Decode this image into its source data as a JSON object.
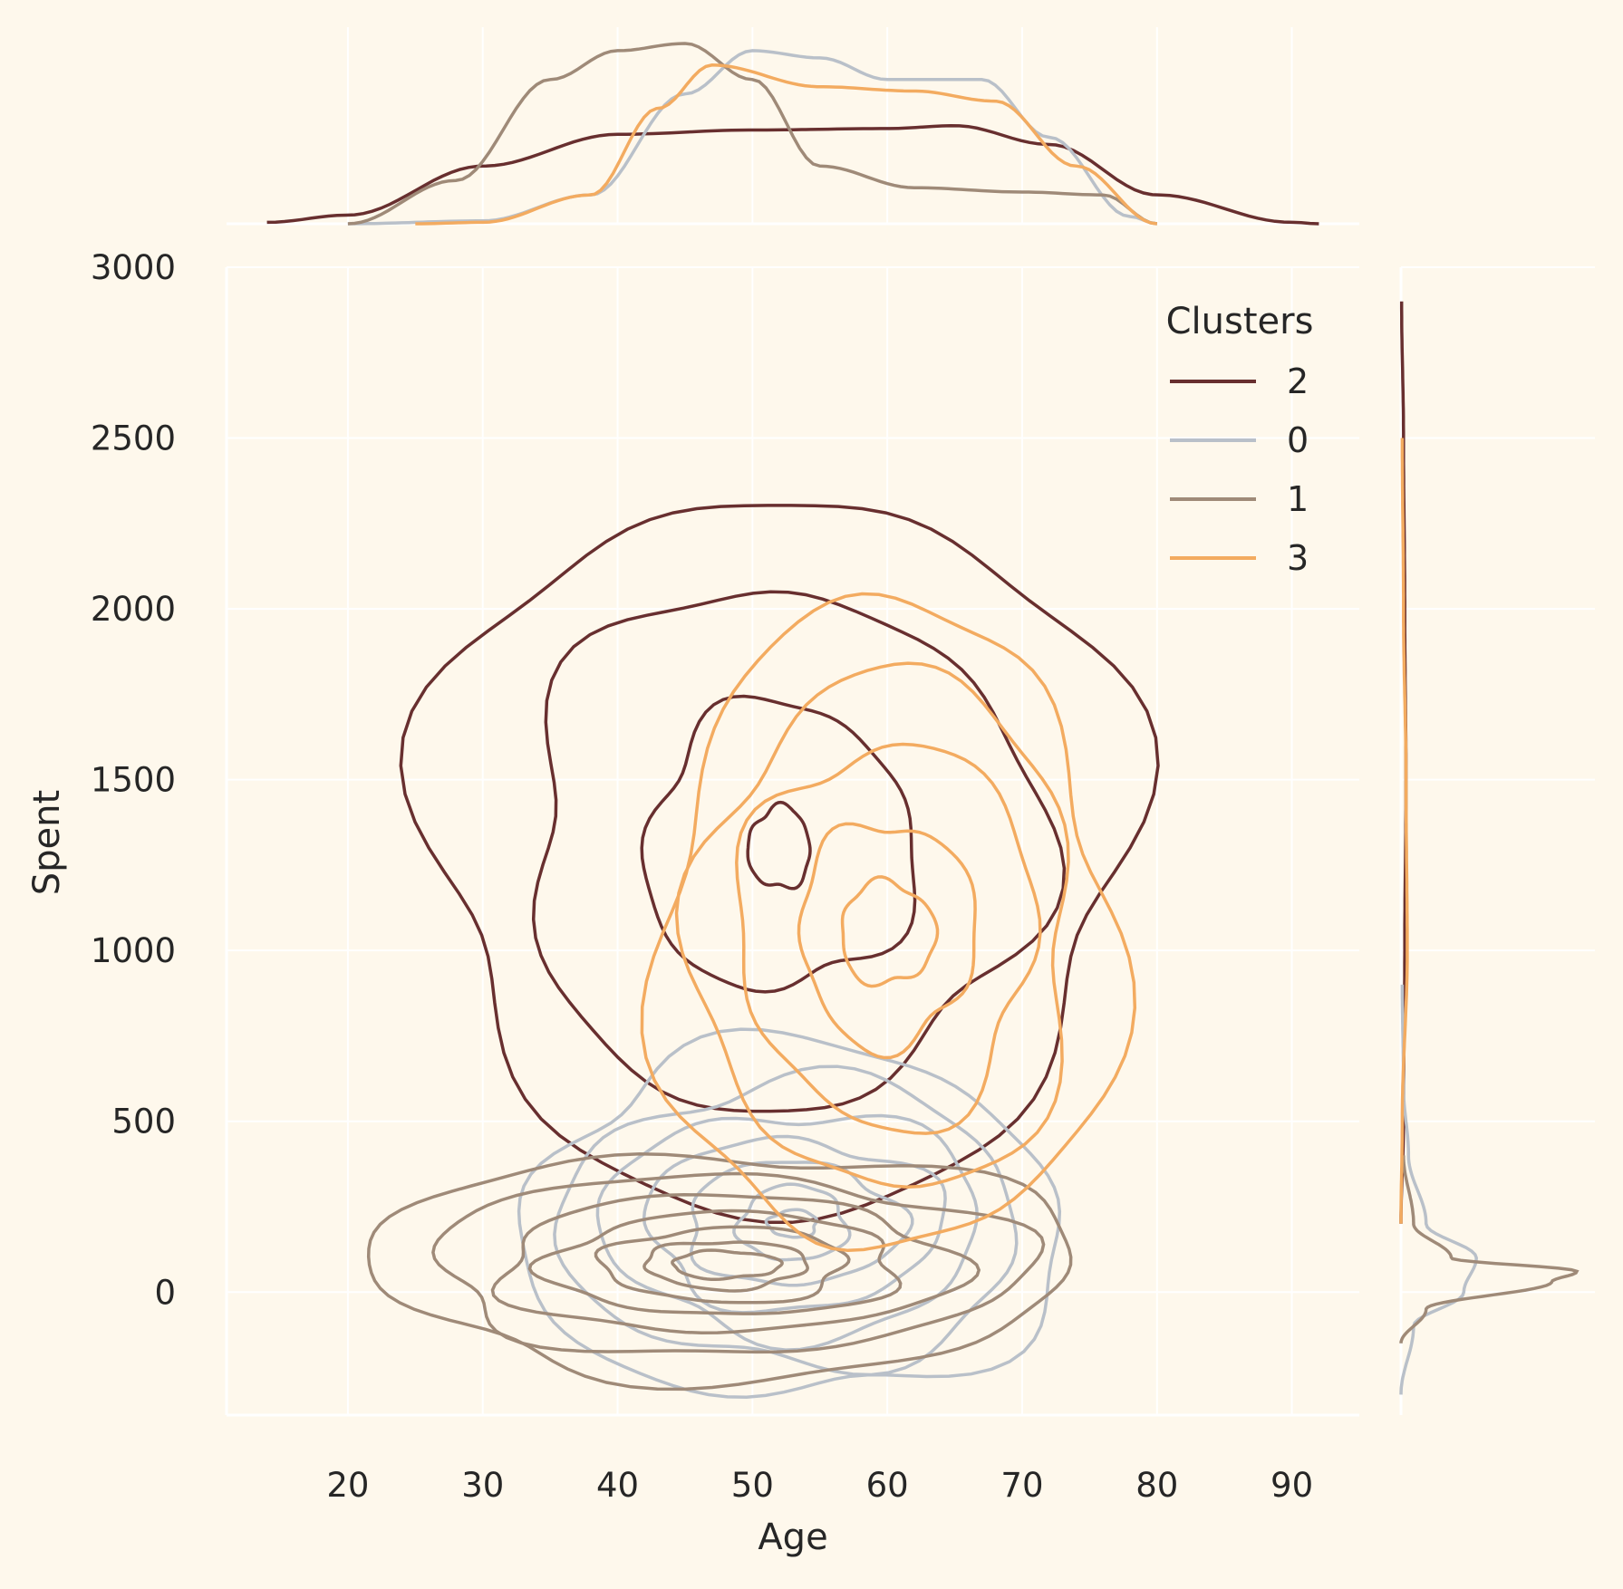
{
  "chart_data": {
    "type": "kde-joint",
    "xlabel": "Age",
    "ylabel": "Spent",
    "xlim": [
      11,
      95
    ],
    "ylim": [
      -360,
      3000
    ],
    "xticks": [
      20,
      30,
      40,
      50,
      60,
      70,
      80,
      90
    ],
    "yticks": [
      0,
      500,
      1000,
      1500,
      2000,
      2500,
      3000
    ],
    "grid": true,
    "legend": {
      "title": "Clusters",
      "placement": "top-right",
      "entries": [
        "2",
        "0",
        "1",
        "3"
      ]
    },
    "colors": {
      "2": "#682F2F",
      "0": "#B9C0C9",
      "1": "#9F8A78",
      "3": "#F3AB60",
      "background": "#FEF8EC",
      "grid": "#FFFFFF"
    },
    "series": [
      {
        "name": "2",
        "cx": 52,
        "cy": 1300,
        "levels": [
          [
            26,
            1050
          ],
          [
            19,
            760
          ],
          [
            10,
            420
          ],
          [
            2.3,
            120
          ]
        ],
        "age_density": [
          [
            14,
            0.001
          ],
          [
            20,
            0.006
          ],
          [
            30,
            0.04
          ],
          [
            40,
            0.062
          ],
          [
            50,
            0.065
          ],
          [
            60,
            0.066
          ],
          [
            65,
            0.068
          ],
          [
            72,
            0.055
          ],
          [
            80,
            0.02
          ],
          [
            90,
            0.001
          ],
          [
            92,
            0
          ]
        ],
        "spent_density": [
          [
            200,
            0
          ],
          [
            500,
            0.002
          ],
          [
            1000,
            0.003
          ],
          [
            1500,
            0.004
          ],
          [
            2000,
            0.003
          ],
          [
            2500,
            0.002
          ],
          [
            2900,
            0.0005
          ]
        ]
      },
      {
        "name": "0",
        "cx": 53,
        "cy": 200,
        "levels": [
          [
            20,
            520
          ],
          [
            17,
            420
          ],
          [
            14,
            330
          ],
          [
            11,
            250
          ],
          [
            8,
            180
          ],
          [
            4,
            110
          ],
          [
            1.8,
            40
          ]
        ],
        "age_density": [
          [
            20,
            0
          ],
          [
            30,
            0.002
          ],
          [
            38,
            0.02
          ],
          [
            45,
            0.09
          ],
          [
            50,
            0.12
          ],
          [
            55,
            0.115
          ],
          [
            60,
            0.1
          ],
          [
            67,
            0.1
          ],
          [
            72,
            0.06
          ],
          [
            78,
            0.005
          ],
          [
            80,
            0
          ]
        ],
        "spent_density": [
          [
            -300,
            0
          ],
          [
            -100,
            0.01
          ],
          [
            0,
            0.05
          ],
          [
            100,
            0.06
          ],
          [
            200,
            0.02
          ],
          [
            400,
            0.006
          ],
          [
            600,
            0.002
          ],
          [
            900,
            0.001
          ]
        ]
      },
      {
        "name": "1",
        "cx": 48,
        "cy": 80,
        "levels": [
          [
            26,
            330
          ],
          [
            22,
            260
          ],
          [
            17,
            200
          ],
          [
            13,
            150
          ],
          [
            9,
            110
          ],
          [
            6,
            70
          ],
          [
            4,
            40
          ]
        ],
        "age_density": [
          [
            20,
            0
          ],
          [
            28,
            0.03
          ],
          [
            35,
            0.1
          ],
          [
            40,
            0.12
          ],
          [
            45,
            0.125
          ],
          [
            50,
            0.1
          ],
          [
            55,
            0.04
          ],
          [
            62,
            0.025
          ],
          [
            70,
            0.022
          ],
          [
            76,
            0.02
          ],
          [
            80,
            0
          ]
        ],
        "spent_density": [
          [
            -150,
            0
          ],
          [
            -50,
            0.02
          ],
          [
            30,
            0.12
          ],
          [
            60,
            0.14
          ],
          [
            100,
            0.04
          ],
          [
            200,
            0.01
          ],
          [
            400,
            0.002
          ]
        ]
      },
      {
        "name": "3",
        "cx": 60,
        "cy": 1050,
        "levels": [
          [
            17,
            950
          ],
          [
            14,
            760
          ],
          [
            11,
            560
          ],
          [
            6.5,
            330
          ],
          [
            3.5,
            150
          ]
        ],
        "age_density": [
          [
            25,
            0
          ],
          [
            30,
            0.001
          ],
          [
            38,
            0.02
          ],
          [
            43,
            0.08
          ],
          [
            47,
            0.11
          ],
          [
            55,
            0.095
          ],
          [
            62,
            0.092
          ],
          [
            68,
            0.085
          ],
          [
            74,
            0.04
          ],
          [
            80,
            0
          ]
        ],
        "spent_density": [
          [
            200,
            0
          ],
          [
            500,
            0.001
          ],
          [
            1000,
            0.005
          ],
          [
            1500,
            0.004
          ],
          [
            2000,
            0.002
          ],
          [
            2500,
            0.001
          ]
        ]
      }
    ]
  }
}
